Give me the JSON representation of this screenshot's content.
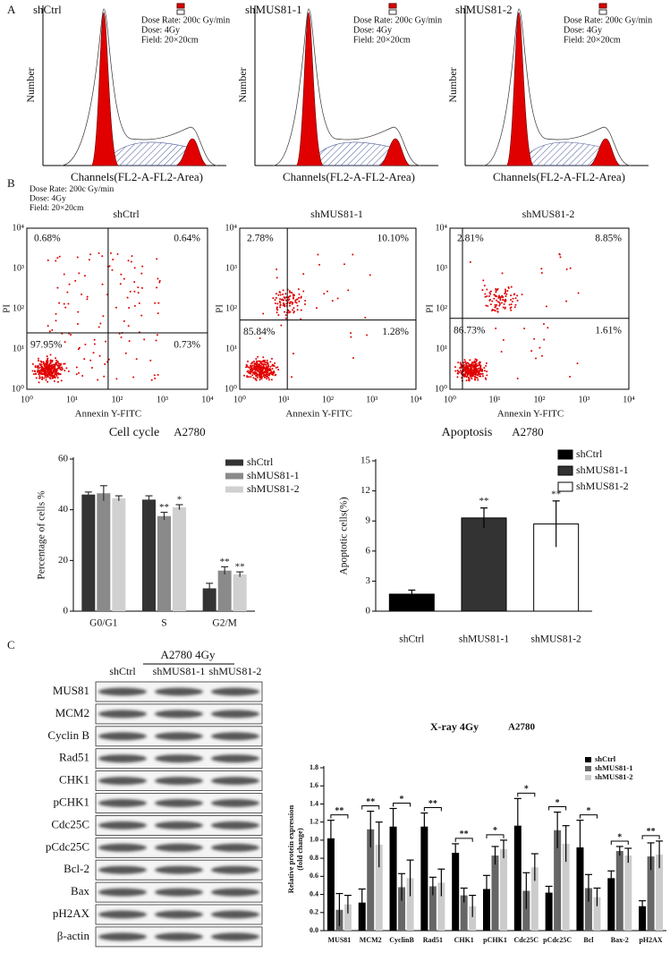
{
  "panel_labels": [
    "A",
    "B",
    "C"
  ],
  "cell_cycle_histograms": {
    "dose_lines": [
      "Dose Rate: 200c Gy/min",
      "Dose: 4Gy",
      "Field: 20×20cm"
    ],
    "y_label": "Number",
    "x_label": "Channels(FL2-A-FL2-Area)",
    "titles": [
      "shCtrl",
      "shMUS81-1",
      "shMUS81-2"
    ]
  },
  "flow_cytometry": {
    "dose_lines": [
      "Dose Rate: 200c Gy/min",
      "Dose: 4Gy",
      "Field: 20×20cm"
    ],
    "x_label": "Annexin Y-FITC",
    "y_label": "PI",
    "ticks": [
      "10⁰",
      "10¹",
      "10²",
      "10³",
      "10⁴"
    ],
    "panels": [
      {
        "title": "shCtrl",
        "quadrants": [
          "0.68%",
          "0.64%",
          "97.95%",
          "0.73%"
        ]
      },
      {
        "title": "shMUS81-1",
        "quadrants": [
          "2.78%",
          "10.10%",
          "85.84%",
          "1.28%"
        ]
      },
      {
        "title": "shMUS81-2",
        "quadrants": [
          "2.81%",
          "8.85%",
          "86.73%",
          "1.61%"
        ]
      }
    ]
  },
  "chart_data": [
    {
      "type": "bar",
      "title": "Cell cycle",
      "subtitle": "A2780",
      "y_label": "Percentage of cells %",
      "categories": [
        "G0/G1",
        "S",
        "G2/M"
      ],
      "series": [
        {
          "name": "shCtrl",
          "color": "#333333",
          "values": [
            46,
            44,
            9
          ],
          "errors": [
            1,
            1.5,
            2
          ],
          "annotations": [
            null,
            null,
            null
          ]
        },
        {
          "name": "shMUS81-1",
          "color": "#8a8a8a",
          "values": [
            46.5,
            37.5,
            16
          ],
          "errors": [
            3,
            1.5,
            1.5
          ],
          "annotations": [
            null,
            "**",
            "**"
          ]
        },
        {
          "name": "shMUS81-2",
          "color": "#d0d0d0",
          "values": [
            44.5,
            41,
            14.5
          ],
          "errors": [
            1,
            1,
            1
          ],
          "annotations": [
            null,
            "*",
            "**"
          ]
        }
      ],
      "ylim": [
        0,
        60
      ],
      "yticks": [
        0,
        20,
        40,
        60
      ],
      "legend": "upper right"
    },
    {
      "type": "bar",
      "title": "Apoptosis",
      "subtitle": "A2780",
      "y_label": "Apoptotic cells(%)",
      "categories": [
        "shCtrl",
        "shMUS81-1",
        "shMUS81-2"
      ],
      "values": [
        1.7,
        9.3,
        8.7
      ],
      "errors": [
        0.4,
        1.0,
        2.3
      ],
      "colors": [
        "#000000",
        "#333333",
        "#ffffff"
      ],
      "annotations": [
        null,
        "**",
        "**"
      ],
      "ylim": [
        0,
        15
      ],
      "yticks": [
        0,
        3,
        6,
        9,
        12,
        15
      ],
      "legend": "upper right"
    },
    {
      "type": "bar",
      "title": "X-ray 4Gy",
      "subtitle": "A2780",
      "y_label": [
        "Relative protein expression",
        "(fold change)"
      ],
      "categories": [
        "MUS81",
        "MCM2",
        "CyclinB",
        "Rad51",
        "CHK1",
        "pCHK1",
        "Cdc25C",
        "pCdc25C",
        "Bcl",
        "Bax-2",
        "pH2AX"
      ],
      "series": [
        {
          "name": "shCtrl",
          "color": "#000000",
          "values": [
            1.02,
            0.31,
            1.15,
            1.15,
            0.86,
            0.46,
            1.16,
            0.42,
            0.92,
            0.58,
            0.27
          ],
          "errors": [
            0.2,
            0.15,
            0.2,
            0.15,
            0.1,
            0.15,
            0.3,
            0.07,
            0.3,
            0.08,
            0.06
          ]
        },
        {
          "name": "shMUS81-1",
          "color": "#666666",
          "values": [
            0.23,
            1.12,
            0.48,
            0.49,
            0.39,
            0.83,
            0.44,
            1.11,
            0.47,
            0.88,
            0.82
          ],
          "errors": [
            0.18,
            0.2,
            0.15,
            0.1,
            0.08,
            0.1,
            0.2,
            0.2,
            0.15,
            0.05,
            0.15
          ]
        },
        {
          "name": "shMUS81-2",
          "color": "#cccccc",
          "values": [
            0.29,
            0.95,
            0.58,
            0.53,
            0.27,
            0.9,
            0.7,
            0.96,
            0.37,
            0.83,
            0.84
          ],
          "errors": [
            0.1,
            0.25,
            0.2,
            0.15,
            0.12,
            0.1,
            0.15,
            0.2,
            0.1,
            0.08,
            0.15
          ]
        }
      ],
      "brackets": [
        "**",
        "**",
        "*",
        "**",
        "**",
        "*",
        "*",
        "*",
        "*",
        "*",
        "**"
      ],
      "ylim": [
        0,
        1.8
      ],
      "yticks": [
        {
          "value": 0,
          "label": "0.0"
        },
        0.2,
        0.4,
        0.6,
        0.8,
        {
          "value": 1,
          "label": "1.0"
        },
        1.2,
        1.4,
        1.6,
        1.8
      ],
      "legend": "upper right"
    }
  ],
  "western_blot": {
    "header": "A2780  4Gy",
    "lanes": [
      "shCtrl",
      "shMUS81-1",
      "shMUS81-2"
    ],
    "proteins": [
      "MUS81",
      "MCM2",
      "Cyclin B",
      "Rad51",
      "CHK1",
      "pCHK1",
      "Cdc25C",
      "pCdc25C",
      "Bcl-2",
      "Bax",
      "pH2AX",
      "β-actin"
    ]
  }
}
